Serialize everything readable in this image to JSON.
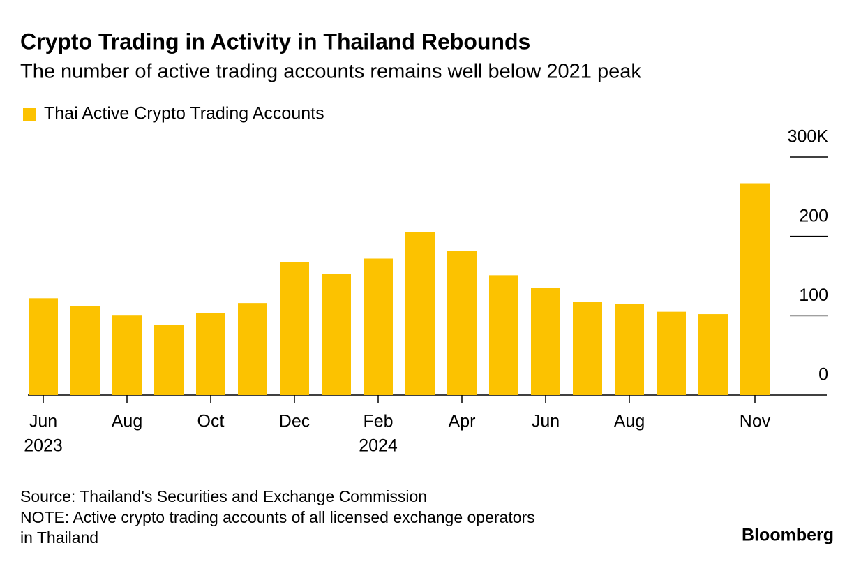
{
  "chart_data": {
    "type": "bar",
    "title": "Crypto Trading in Activity in Thailand Rebounds",
    "subtitle": "The number of active trading accounts remains well below 2021 peak",
    "categories": [
      "Jun",
      null,
      "Aug",
      null,
      "Oct",
      null,
      "Dec",
      null,
      "Feb",
      null,
      "Apr",
      null,
      "Jun",
      null,
      "Aug",
      null,
      null,
      "Nov"
    ],
    "years": [
      "2023",
      null,
      null,
      null,
      null,
      null,
      null,
      null,
      "2024",
      null,
      null,
      null,
      null,
      null,
      null,
      null,
      null,
      null
    ],
    "series": [
      {
        "name": "Thai Active Crypto Trading Accounts",
        "color": "#fcc200",
        "values": [
          122,
          112,
          101,
          88,
          103,
          116,
          168,
          153,
          172,
          205,
          182,
          151,
          135,
          117,
          115,
          105,
          102,
          267
        ]
      }
    ],
    "ylim": [
      0,
      300
    ],
    "yticks": [
      0,
      100,
      200,
      {
        "value": 300,
        "label": "300K"
      }
    ],
    "source": "Source: Thailand's Securities and Exchange Commission",
    "note": [
      "NOTE: Active crypto trading accounts of all licensed exchange operators",
      "in Thailand"
    ],
    "brand": "Bloomberg"
  }
}
